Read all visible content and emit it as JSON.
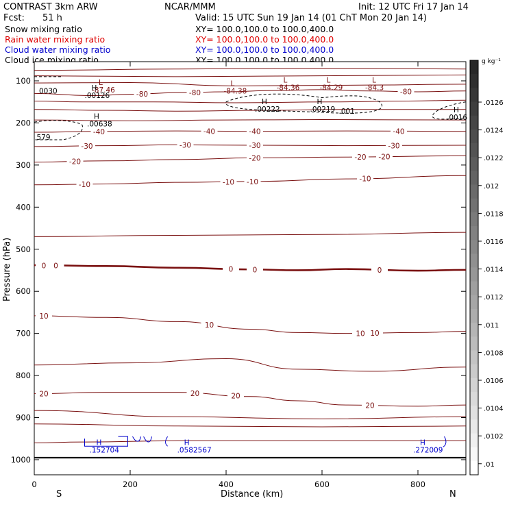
{
  "header": {
    "model": "CONTRAST  3km ARW",
    "org": "NCAR/MMM",
    "init": "Init: 12 UTC Fri 17 Jan 14",
    "fcst_label": "Fcst:",
    "fcst_value": "51 h",
    "valid": "Valid: 15 UTC Sun 19 Jan 14 (01 ChT Mon 20 Jan 14)"
  },
  "legend": [
    {
      "name": "Snow mixing ratio",
      "xy": "XY= 100.0,100.0 to 100.0,400.0",
      "color": "#000000"
    },
    {
      "name": "Rain water mixing ratio",
      "xy": "XY= 100.0,100.0 to 100.0,400.0",
      "color": "#dd0000"
    },
    {
      "name": "Cloud water mixing ratio",
      "xy": "XY= 100.0,100.0 to 100.0,400.0",
      "color": "#0000cc"
    },
    {
      "name": "Cloud ice mixing ratio",
      "xy": "XY= 100.0,100.0 to 100.0,400.0",
      "color": "#000000"
    }
  ],
  "chart_data": {
    "type": "contour-cross-section",
    "xlabel": "Distance (km)",
    "ylabel": "Pressure (hPa)",
    "xlim": [
      0,
      900
    ],
    "ylim": [
      1050,
      50
    ],
    "x_ticks": [
      "0",
      "200",
      "400",
      "600",
      "800"
    ],
    "y_ticks": [
      "100",
      "200",
      "300",
      "400",
      "500",
      "600",
      "700",
      "800",
      "900",
      "1000"
    ],
    "end_labels": {
      "left": "S",
      "right": "N"
    },
    "colorbar": {
      "unit": "g kg⁻¹",
      "ticks": [
        ".0126",
        ".0124",
        ".0122",
        ".012",
        ".0118",
        ".0116",
        ".0114",
        ".0112",
        ".011",
        ".0108",
        ".0106",
        ".0104",
        ".0102",
        ".01"
      ]
    },
    "temperature_contours": [
      {
        "level": -80,
        "points": [
          [
            0,
            130
          ],
          [
            120,
            135
          ],
          [
            200,
            132
          ],
          [
            300,
            128
          ],
          [
            400,
            126
          ],
          [
            500,
            123
          ],
          [
            600,
            121
          ],
          [
            700,
            124
          ],
          [
            800,
            126
          ],
          [
            900,
            124
          ]
        ],
        "labels": [
          {
            "x": 225,
            "text": "-80"
          },
          {
            "x": 335,
            "text": "-80"
          },
          {
            "x": 775,
            "text": "-80"
          }
        ]
      },
      {
        "level": -70,
        "points": [
          [
            0,
            148
          ],
          [
            100,
            150
          ],
          [
            250,
            150
          ],
          [
            420,
            152
          ],
          [
            620,
            150
          ],
          [
            780,
            148
          ],
          [
            900,
            146
          ]
        ],
        "labels": []
      },
      {
        "level": -60,
        "points": [
          [
            0,
            168
          ],
          [
            150,
            170
          ],
          [
            300,
            172
          ],
          [
            480,
            170
          ],
          [
            650,
            168
          ],
          [
            900,
            168
          ]
        ],
        "labels": []
      },
      {
        "level": -50,
        "points": [
          [
            0,
            193
          ],
          [
            200,
            195
          ],
          [
            400,
            193
          ],
          [
            600,
            192
          ],
          [
            900,
            193
          ]
        ],
        "labels": []
      },
      {
        "level": -40,
        "points": [
          [
            0,
            222
          ],
          [
            150,
            220
          ],
          [
            300,
            219
          ],
          [
            450,
            220
          ],
          [
            650,
            219
          ],
          [
            900,
            220
          ]
        ],
        "labels": [
          {
            "x": 135,
            "text": "-40"
          },
          {
            "x": 365,
            "text": "-40"
          },
          {
            "x": 460,
            "text": "-40"
          },
          {
            "x": 760,
            "text": "-40"
          }
        ]
      },
      {
        "level": -30,
        "points": [
          [
            0,
            256
          ],
          [
            150,
            254
          ],
          [
            300,
            252
          ],
          [
            460,
            253
          ],
          [
            650,
            254
          ],
          [
            900,
            253
          ]
        ],
        "labels": [
          {
            "x": 110,
            "text": "-30"
          },
          {
            "x": 315,
            "text": "-30"
          },
          {
            "x": 460,
            "text": "-30"
          },
          {
            "x": 750,
            "text": "-30"
          }
        ]
      },
      {
        "level": -20,
        "points": [
          [
            0,
            293
          ],
          [
            150,
            290
          ],
          [
            300,
            287
          ],
          [
            460,
            283
          ],
          [
            650,
            281
          ],
          [
            900,
            278
          ]
        ],
        "labels": [
          {
            "x": 85,
            "text": "-20"
          },
          {
            "x": 460,
            "text": "-20"
          },
          {
            "x": 680,
            "text": "-20"
          },
          {
            "x": 730,
            "text": "-20"
          }
        ]
      },
      {
        "level": -10,
        "points": [
          [
            0,
            347
          ],
          [
            150,
            345
          ],
          [
            300,
            341
          ],
          [
            460,
            339
          ],
          [
            650,
            333
          ],
          [
            900,
            325
          ]
        ],
        "labels": [
          {
            "x": 105,
            "text": "-10"
          },
          {
            "x": 405,
            "text": "-10"
          },
          {
            "x": 455,
            "text": "-10"
          },
          {
            "x": 690,
            "text": "-10"
          }
        ]
      },
      {
        "level": 0,
        "points": [
          [
            0,
            538
          ],
          [
            150,
            540
          ],
          [
            300,
            544
          ],
          [
            450,
            548
          ],
          [
            550,
            550
          ],
          [
            650,
            547
          ],
          [
            800,
            551
          ],
          [
            900,
            549
          ]
        ],
        "labels": [
          {
            "x": 20,
            "text": "0"
          },
          {
            "x": 45,
            "text": "0"
          },
          {
            "x": 410,
            "text": "0"
          },
          {
            "x": 460,
            "text": "0"
          },
          {
            "x": 720,
            "text": "0"
          }
        ],
        "heavy": true
      },
      {
        "level": 10,
        "points": [
          [
            0,
            658
          ],
          [
            150,
            662
          ],
          [
            300,
            672
          ],
          [
            450,
            690
          ],
          [
            550,
            698
          ],
          [
            650,
            700
          ],
          [
            800,
            698
          ],
          [
            900,
            695
          ]
        ],
        "labels": [
          {
            "x": 20,
            "text": "10"
          },
          {
            "x": 365,
            "text": "10"
          },
          {
            "x": 680,
            "text": "10"
          },
          {
            "x": 710,
            "text": "10"
          }
        ]
      },
      {
        "level": 20,
        "points": [
          [
            0,
            843
          ],
          [
            150,
            840
          ],
          [
            300,
            840
          ],
          [
            450,
            850
          ],
          [
            550,
            860
          ],
          [
            650,
            870
          ],
          [
            800,
            873
          ],
          [
            900,
            870
          ]
        ],
        "labels": [
          {
            "x": 20,
            "text": "20"
          },
          {
            "x": 335,
            "text": "20"
          },
          {
            "x": 420,
            "text": "20"
          },
          {
            "x": 700,
            "text": "20"
          }
        ]
      },
      {
        "level": 30,
        "points": [
          [
            0,
            960
          ],
          [
            100,
            958
          ],
          [
            300,
            955
          ],
          [
            500,
            955
          ],
          [
            700,
            955
          ],
          [
            900,
            955
          ]
        ],
        "labels": []
      }
    ],
    "extra_contours": [
      {
        "points": [
          [
            0,
            75
          ],
          [
            300,
            72
          ],
          [
            600,
            70
          ],
          [
            900,
            72
          ]
        ]
      },
      {
        "points": [
          [
            0,
            88
          ],
          [
            300,
            90
          ],
          [
            600,
            88
          ],
          [
            900,
            86
          ]
        ]
      },
      {
        "points": [
          [
            0,
            105
          ],
          [
            200,
            104
          ],
          [
            420,
            112
          ],
          [
            700,
            110
          ],
          [
            900,
            108
          ]
        ]
      },
      {
        "points": [
          [
            0,
            470
          ],
          [
            300,
            467
          ],
          [
            600,
            465
          ],
          [
            900,
            460
          ]
        ]
      },
      {
        "points": [
          [
            0,
            775
          ],
          [
            200,
            770
          ],
          [
            400,
            760
          ],
          [
            550,
            785
          ],
          [
            700,
            790
          ],
          [
            900,
            780
          ]
        ]
      },
      {
        "points": [
          [
            0,
            883
          ],
          [
            300,
            898
          ],
          [
            600,
            903
          ],
          [
            900,
            898
          ]
        ]
      },
      {
        "points": [
          [
            0,
            915
          ],
          [
            300,
            920
          ],
          [
            600,
            922
          ],
          [
            900,
            920
          ]
        ]
      }
    ],
    "extremes": [
      {
        "kind": "L",
        "x": 120,
        "p": 110,
        "value": "-87.46",
        "color": "#7a1010"
      },
      {
        "kind": "L",
        "x": 395,
        "p": 112,
        "value": "-84.38",
        "color": "#7a1010"
      },
      {
        "kind": "L",
        "x": 505,
        "p": 104,
        "value": "-84.36",
        "color": "#7a1010"
      },
      {
        "kind": "L",
        "x": 595,
        "p": 104,
        "value": "-84.29",
        "color": "#7a1010"
      },
      {
        "kind": "L",
        "x": 690,
        "p": 104,
        "value": "-84.3",
        "color": "#7a1010"
      },
      {
        "kind": "H",
        "x": 105,
        "p": 123,
        "value": ".00126",
        "color": "#000000"
      },
      {
        "kind": "H",
        "x": 460,
        "p": 155,
        "value": ".00222",
        "color": "#000000"
      },
      {
        "kind": "H",
        "x": 575,
        "p": 155,
        "value": ".00219",
        "color": "#000000"
      },
      {
        "kind": "H",
        "x": 110,
        "p": 190,
        "value": ".00638",
        "color": "#000000"
      },
      {
        "kind": "H",
        "x": 860,
        "p": 175,
        "value": ".0016",
        "color": "#000000"
      },
      {
        "kind": "H",
        "x": 115,
        "p": 965,
        "value": ".152704",
        "color": "#0000cc"
      },
      {
        "kind": "H",
        "x": 298,
        "p": 965,
        "value": ".0582567",
        "color": "#0000cc"
      },
      {
        "kind": "H",
        "x": 790,
        "p": 965,
        "value": ".272009",
        "color": "#0000cc"
      }
    ],
    "cloud_labels": [
      {
        "x": 635,
        "p": 178,
        "text": ".001"
      },
      {
        "x": 10,
        "p": 130,
        "text": "0030"
      },
      {
        "x": 5,
        "p": 240,
        "text": "579"
      }
    ]
  }
}
